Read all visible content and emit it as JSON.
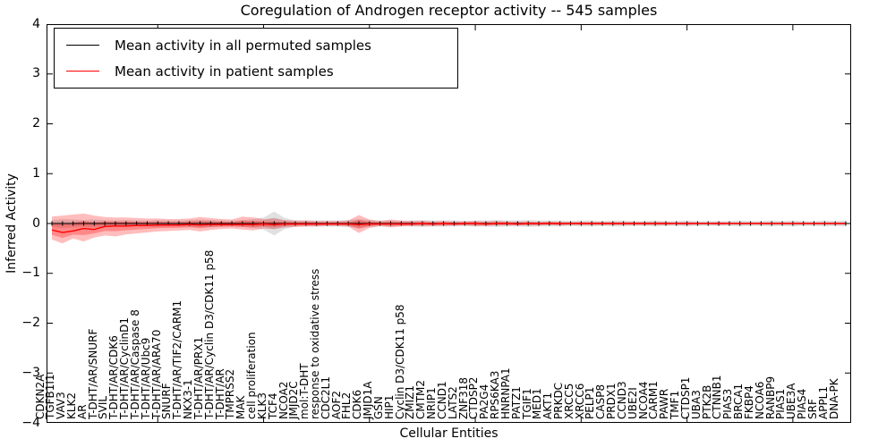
{
  "figure": {
    "title": "Coregulation of Androgen receptor activity -- 545 samples"
  },
  "axes": {
    "y_label": "Inferred Activity",
    "x_label": "Cellular Entities"
  },
  "legend": {
    "entries": [
      {
        "label": "Mean activity in all permuted samples",
        "color": "#000000"
      },
      {
        "label": "Mean activity in patient samples",
        "color": "#ff0000"
      }
    ]
  },
  "chart_data": {
    "type": "line",
    "title": "Coregulation of Androgen receptor activity -- 545 samples",
    "xlabel": "Cellular Entities",
    "ylabel": "Inferred Activity",
    "ylim": [
      -4,
      4
    ],
    "yticks": [
      4,
      3,
      2,
      1,
      0,
      -1,
      -2,
      -3,
      -4
    ],
    "grid": false,
    "legend_position": "upper left",
    "band_alpha_note": "each series line has a shaded confidence band around it",
    "categories": [
      "CDKN2A",
      "TGFB1I1",
      "VAV3",
      "KLK2",
      "AR",
      "T-DHT/AR/SNURF",
      "SVIL",
      "T-DHT/AR/CDK6",
      "T-DHT/AR/CyclinD1",
      "T-DHT/AR/Caspase 8",
      "T-DHT/AR/Ubc9",
      "T-DHT/AR/ARA70",
      "SNURF",
      "T-DHT/AR/TIF2/CARM1",
      "NKX3-1",
      "T-DHT/AR/PRX1",
      "T-DHT/AR/Cyclin D3/CDK11 p58",
      "T-DHT/AR",
      "TMPRSS2",
      "MAK",
      "cell proliferation",
      "KLK3",
      "TCF4",
      "NCOA2",
      "JMJD2C",
      "mol:T-DHT",
      "response to oxidative stress",
      "CDC2L1",
      "AOF2",
      "FHL2",
      "CDK6",
      "JMJD1A",
      "GSN",
      "HIP1",
      "Cyclin D3/CDK11 p58",
      "ZMIZ1",
      "CMTM2",
      "NRIP1",
      "CCND1",
      "LATS2",
      "ZNF318",
      "CTDSP2",
      "PA2G4",
      "RPS6KA3",
      "HNRNPA1",
      "PATZ1",
      "TGIF1",
      "MED1",
      "AKT1",
      "PRKDC",
      "XRCC5",
      "XRCC6",
      "PELP1",
      "CASP8",
      "PRDX1",
      "CCND3",
      "UBE2I",
      "NCOA4",
      "CARM1",
      "PAWR",
      "TMF1",
      "CTDSP1",
      "UBA3",
      "PTK2B",
      "CTNNB1",
      "PIAS3",
      "BRCA1",
      "FKBP4",
      "NCOA6",
      "RANBP9",
      "PIAS1",
      "UBE3A",
      "PIAS4",
      "SRF",
      "APPL1",
      "DNA-PK"
    ],
    "series": [
      {
        "name": "Mean activity in all permuted samples",
        "color": "#000000",
        "band_color": "#787878",
        "values": [
          0,
          0,
          0,
          0,
          0,
          0,
          0,
          0,
          0,
          0,
          0,
          0,
          0,
          0,
          0,
          0,
          0,
          0,
          0,
          0,
          0,
          0,
          0,
          0,
          0,
          0,
          0,
          0,
          0,
          0,
          0,
          0,
          0,
          0,
          0,
          0,
          0,
          0,
          0,
          0,
          0,
          0,
          0,
          0,
          0,
          0,
          0,
          0,
          0,
          0,
          0,
          0,
          0,
          0,
          0,
          0,
          0,
          0,
          0,
          0,
          0,
          0,
          0,
          0,
          0,
          0,
          0,
          0,
          0,
          0,
          0,
          0,
          0,
          0,
          0,
          0
        ],
        "band_upper": [
          0.07,
          0.09,
          0.08,
          0.07,
          0.08,
          0.07,
          0.06,
          0.07,
          0.06,
          0.06,
          0.07,
          0.06,
          0.06,
          0.07,
          0.08,
          0.07,
          0.06,
          0.06,
          0.07,
          0.09,
          0.12,
          0.24,
          0.11,
          0.06,
          0.06,
          0.06,
          0.06,
          0.06,
          0.07,
          0.09,
          0.07,
          0.06,
          0.06,
          0.05,
          0.06,
          0.07,
          0.06,
          0.06,
          0.06,
          0.05,
          0.06,
          0.06,
          0.07,
          0.06,
          0.06,
          0.07,
          0.06,
          0.06,
          0.06,
          0.05,
          0.06,
          0.06,
          0.05,
          0.06,
          0.06,
          0.05,
          0.05,
          0.06,
          0.05,
          0.05,
          0.06,
          0.05,
          0.05,
          0.05,
          0.05,
          0.06,
          0.05,
          0.05,
          0.06,
          0.05,
          0.06,
          0.05,
          0.05,
          0.06,
          0.05,
          0.06
        ],
        "band_lower": [
          -0.07,
          -0.09,
          -0.08,
          -0.07,
          -0.08,
          -0.07,
          -0.06,
          -0.07,
          -0.06,
          -0.06,
          -0.07,
          -0.06,
          -0.06,
          -0.07,
          -0.08,
          -0.07,
          -0.06,
          -0.06,
          -0.07,
          -0.09,
          -0.12,
          -0.24,
          -0.11,
          -0.06,
          -0.06,
          -0.06,
          -0.06,
          -0.06,
          -0.07,
          -0.09,
          -0.07,
          -0.06,
          -0.06,
          -0.05,
          -0.06,
          -0.07,
          -0.06,
          -0.06,
          -0.06,
          -0.05,
          -0.06,
          -0.06,
          -0.07,
          -0.06,
          -0.06,
          -0.07,
          -0.06,
          -0.06,
          -0.06,
          -0.05,
          -0.06,
          -0.06,
          -0.05,
          -0.06,
          -0.06,
          -0.05,
          -0.05,
          -0.06,
          -0.05,
          -0.05,
          -0.06,
          -0.05,
          -0.05,
          -0.05,
          -0.05,
          -0.06,
          -0.05,
          -0.05,
          -0.06,
          -0.05,
          -0.06,
          -0.05,
          -0.05,
          -0.06,
          -0.05,
          -0.06
        ]
      },
      {
        "name": "Mean activity in patient samples",
        "color": "#ff0000",
        "band_color": "#ff0000",
        "values": [
          -0.13,
          -0.18,
          -0.15,
          -0.1,
          -0.12,
          -0.06,
          -0.05,
          -0.05,
          -0.04,
          -0.04,
          -0.03,
          -0.03,
          -0.03,
          -0.02,
          -0.03,
          -0.02,
          -0.02,
          -0.02,
          -0.02,
          -0.02,
          -0.01,
          -0.02,
          -0.01,
          -0.01,
          -0.01,
          -0.01,
          -0.01,
          -0.01,
          -0.01,
          -0.02,
          -0.01,
          -0.01,
          -0.01,
          -0.01,
          -0.01,
          0,
          -0.01,
          0,
          -0.01,
          0,
          0,
          -0.01,
          0,
          0,
          -0.01,
          0,
          0,
          0,
          0,
          0,
          0,
          0,
          0,
          0,
          0,
          0,
          0,
          0,
          0,
          0,
          0,
          0,
          0,
          0,
          0,
          0,
          0,
          0,
          0,
          0,
          0,
          0,
          0,
          0,
          0,
          0
        ],
        "band_upper": [
          0.14,
          0.16,
          0.18,
          0.2,
          0.16,
          0.13,
          0.12,
          0.12,
          0.11,
          0.1,
          0.1,
          0.09,
          0.09,
          0.1,
          0.13,
          0.11,
          0.09,
          0.08,
          0.14,
          0.12,
          0.09,
          0.1,
          0.07,
          0.06,
          0.06,
          0.05,
          0.05,
          0.05,
          0.06,
          0.17,
          0.08,
          0.05,
          0.08,
          0.06,
          0.05,
          0.05,
          0.04,
          0.05,
          0.04,
          0.04,
          0.05,
          0.04,
          0.05,
          0.04,
          0.04,
          0.04,
          0.03,
          0.04,
          0.03,
          0.03,
          0.03,
          0.03,
          0.03,
          0.03,
          0.03,
          0.03,
          0.03,
          0.03,
          0.03,
          0.02,
          0.03,
          0.02,
          0.02,
          0.03,
          0.02,
          0.02,
          0.02,
          0.02,
          0.02,
          0.02,
          0.02,
          0.02,
          0.02,
          0.02,
          0.02,
          0.02
        ],
        "band_lower": [
          -0.32,
          -0.4,
          -0.3,
          -0.36,
          -0.28,
          -0.24,
          -0.26,
          -0.22,
          -0.2,
          -0.18,
          -0.16,
          -0.15,
          -0.14,
          -0.13,
          -0.16,
          -0.13,
          -0.11,
          -0.1,
          -0.12,
          -0.14,
          -0.1,
          -0.11,
          -0.08,
          -0.07,
          -0.06,
          -0.06,
          -0.05,
          -0.05,
          -0.06,
          -0.19,
          -0.09,
          -0.05,
          -0.08,
          -0.06,
          -0.05,
          -0.05,
          -0.05,
          -0.05,
          -0.04,
          -0.04,
          -0.05,
          -0.05,
          -0.04,
          -0.04,
          -0.04,
          -0.04,
          -0.04,
          -0.03,
          -0.04,
          -0.03,
          -0.03,
          -0.03,
          -0.03,
          -0.03,
          -0.03,
          -0.03,
          -0.03,
          -0.03,
          -0.03,
          -0.02,
          -0.03,
          -0.02,
          -0.02,
          -0.03,
          -0.02,
          -0.02,
          -0.02,
          -0.02,
          -0.02,
          -0.02,
          -0.02,
          -0.02,
          -0.02,
          -0.02,
          -0.02,
          -0.02
        ]
      }
    ]
  }
}
